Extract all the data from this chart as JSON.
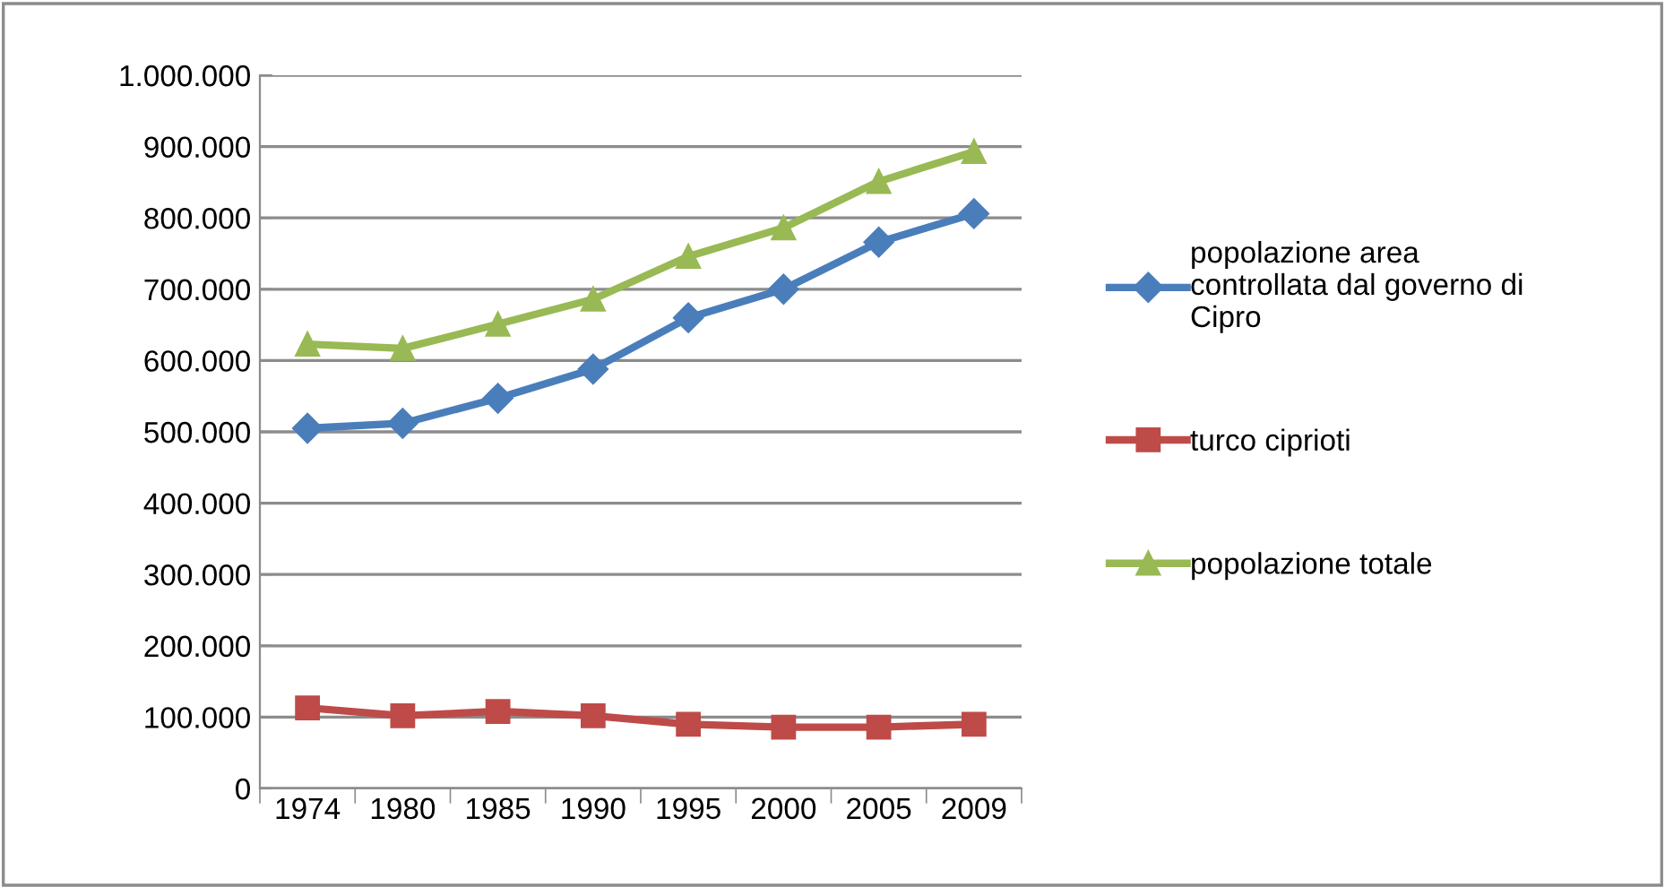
{
  "chart_data": {
    "type": "line",
    "categories": [
      "1974",
      "1980",
      "1985",
      "1990",
      "1995",
      "2000",
      "2005",
      "2009"
    ],
    "series": [
      {
        "name": "popolazione area\ncontrollata dal governo di\nCipro",
        "color": "#4a7ebb",
        "marker": "diamond",
        "values": [
          505000,
          512000,
          547000,
          588000,
          660000,
          700000,
          766000,
          806000
        ]
      },
      {
        "name": "turco ciprioti",
        "color": "#be4b48",
        "marker": "square",
        "values": [
          113000,
          102000,
          108000,
          102000,
          90000,
          86000,
          86000,
          90000
        ]
      },
      {
        "name": "popolazione totale",
        "color": "#98b954",
        "marker": "triangle",
        "values": [
          623000,
          617000,
          651000,
          686000,
          746000,
          786000,
          851000,
          893000
        ]
      }
    ],
    "ylim": [
      0,
      1000000
    ],
    "yticks": [
      0,
      {
        "value": 100000,
        "label": "100.000"
      },
      {
        "value": 200000,
        "label": "200.000"
      },
      {
        "value": 300000,
        "label": "300.000"
      },
      {
        "value": 400000,
        "label": "400.000"
      },
      {
        "value": 500000,
        "label": "500.000"
      },
      {
        "value": 600000,
        "label": "600.000"
      },
      {
        "value": 700000,
        "label": "700.000"
      },
      {
        "value": 800000,
        "label": "800.000"
      },
      {
        "value": 900000,
        "label": "900.000"
      },
      {
        "value": 1000000,
        "label": "1.000.000"
      }
    ],
    "grid": "y",
    "legend": "right",
    "line_style": "solid"
  }
}
